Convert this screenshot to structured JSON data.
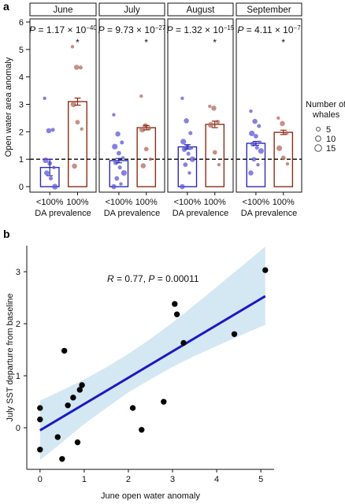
{
  "panel_labels": {
    "a": "a",
    "b": "b"
  },
  "chart_data": [
    {
      "type": "bar",
      "panel": "a",
      "ylabel": "Open water area anomaly",
      "ylim": [
        -0.2,
        6.0
      ],
      "yticks": [
        0,
        1,
        2,
        3,
        4,
        5,
        6
      ],
      "ytick_labels": [
        "0",
        "1",
        "2",
        "3",
        "4",
        "5",
        "6"
      ],
      "reference_line": 1,
      "categories": [
        "<100%",
        "100%"
      ],
      "category_sublabel": "DA prevalence",
      "bar_colors": [
        "#2b2bb5",
        "#8b2e16"
      ],
      "point_colors": [
        "#5e57d6",
        "#b46a5c"
      ],
      "legend": {
        "title_line1": "Number of",
        "title_line2": "whales",
        "sizes": [
          5,
          10,
          15
        ],
        "labels": [
          "5",
          "10",
          "15"
        ],
        "placement": "right"
      },
      "facets": [
        {
          "month": "June",
          "p_value": {
            "prefix": "P",
            "text": " = 1.17 × 10",
            "exp": "−40"
          },
          "significance": "*",
          "values": [
            0.7,
            3.1
          ],
          "errors": [
            0.3,
            0.13
          ],
          "points": [
            [
              3.22,
              2.04,
              2.07,
              0.96,
              0.85,
              0.7,
              0.5,
              0.3,
              0.0
            ],
            [
              5.1,
              4.35,
              4.34,
              3.0,
              2.35,
              2.1,
              0.75
            ]
          ]
        },
        {
          "month": "July",
          "p_value": {
            "prefix": "P",
            "text": " = 9.73 × 10",
            "exp": "−27"
          },
          "significance": "*",
          "values": [
            0.95,
            2.15
          ],
          "errors": [
            0.08,
            0.08
          ],
          "points": [
            [
              2.62,
              1.92,
              1.61,
              1.46,
              1.22,
              1.05,
              0.88,
              0.7,
              0.5,
              0.3,
              0.1,
              0.0
            ],
            [
              3.3,
              2.22,
              2.13,
              2.08,
              1.37,
              1.0,
              0.76
            ]
          ]
        },
        {
          "month": "August",
          "p_value": {
            "prefix": "P",
            "text": " = 1.32 × 10",
            "exp": "−15"
          },
          "significance": "*",
          "values": [
            1.45,
            2.27
          ],
          "errors": [
            0.08,
            0.12
          ],
          "points": [
            [
              3.22,
              2.4,
              1.95,
              1.64,
              1.45,
              1.41,
              1.36,
              1.2,
              1.0,
              0.8,
              0.5,
              0.0
            ],
            [
              2.93,
              2.86,
              2.36,
              2.25,
              1.25,
              0.8
            ]
          ]
        },
        {
          "month": "September",
          "p_value": {
            "prefix": "P",
            "text": " = 4.11 × 10",
            "exp": "−7"
          },
          "significance": "*",
          "values": [
            1.58,
            1.98
          ],
          "errors": [
            0.07,
            0.08
          ],
          "points": [
            [
              2.75,
              2.38,
              2.21,
              1.94,
              1.84,
              1.62,
              1.55,
              1.42,
              1.3,
              1.0,
              0.8,
              0.5
            ],
            [
              2.5,
              2.3,
              1.95,
              1.4,
              1.05,
              0.83
            ]
          ]
        }
      ]
    },
    {
      "type": "scatter",
      "panel": "b",
      "xlabel": "June open water anomaly",
      "ylabel": "July SST departure from baseline",
      "xlim": [
        -0.3,
        5.3
      ],
      "ylim": [
        -0.8,
        3.5
      ],
      "xticks": [
        0,
        1,
        2,
        3,
        4,
        5
      ],
      "xtick_labels": [
        "0",
        "1",
        "2",
        "3",
        "4",
        "5"
      ],
      "yticks": [
        0,
        1,
        2,
        3
      ],
      "ytick_labels": [
        "0",
        "1",
        "2",
        "3"
      ],
      "annotation": {
        "r_prefix": "R",
        "r_text": " = 0.77, ",
        "p_prefix": "P",
        "p_text": " = 0.00011"
      },
      "points": [
        {
          "x": 0.0,
          "y": 0.38
        },
        {
          "x": 0.0,
          "y": 0.16
        },
        {
          "x": 0.0,
          "y": -0.42
        },
        {
          "x": 0.4,
          "y": -0.18
        },
        {
          "x": 0.5,
          "y": -0.6
        },
        {
          "x": 0.55,
          "y": 1.48
        },
        {
          "x": 0.63,
          "y": 0.43
        },
        {
          "x": 0.75,
          "y": 0.58
        },
        {
          "x": 0.85,
          "y": -0.28
        },
        {
          "x": 0.9,
          "y": 0.73
        },
        {
          "x": 0.95,
          "y": 0.82
        },
        {
          "x": 2.1,
          "y": 0.38
        },
        {
          "x": 2.3,
          "y": -0.04
        },
        {
          "x": 2.8,
          "y": 0.5
        },
        {
          "x": 3.05,
          "y": 2.38
        },
        {
          "x": 3.1,
          "y": 2.18
        },
        {
          "x": 3.25,
          "y": 1.63
        },
        {
          "x": 4.4,
          "y": 1.8
        },
        {
          "x": 5.1,
          "y": 3.03
        }
      ],
      "fit_line": {
        "x": [
          0.0,
          5.1
        ],
        "y": [
          -0.05,
          2.53
        ]
      },
      "ci_band": {
        "x": [
          0.0,
          0.5,
          1.0,
          1.5,
          2.0,
          2.5,
          3.0,
          3.5,
          4.0,
          4.5,
          5.1
        ],
        "lower": [
          -0.62,
          -0.28,
          0.07,
          0.38,
          0.68,
          0.93,
          1.17,
          1.38,
          1.57,
          1.76,
          1.98
        ],
        "upper": [
          0.52,
          0.72,
          0.93,
          1.16,
          1.42,
          1.71,
          2.02,
          2.36,
          2.71,
          3.06,
          3.48
        ]
      },
      "colors": {
        "line": "#1a1ac4",
        "band": "#cfe5f2",
        "points": "#050505"
      }
    }
  ]
}
